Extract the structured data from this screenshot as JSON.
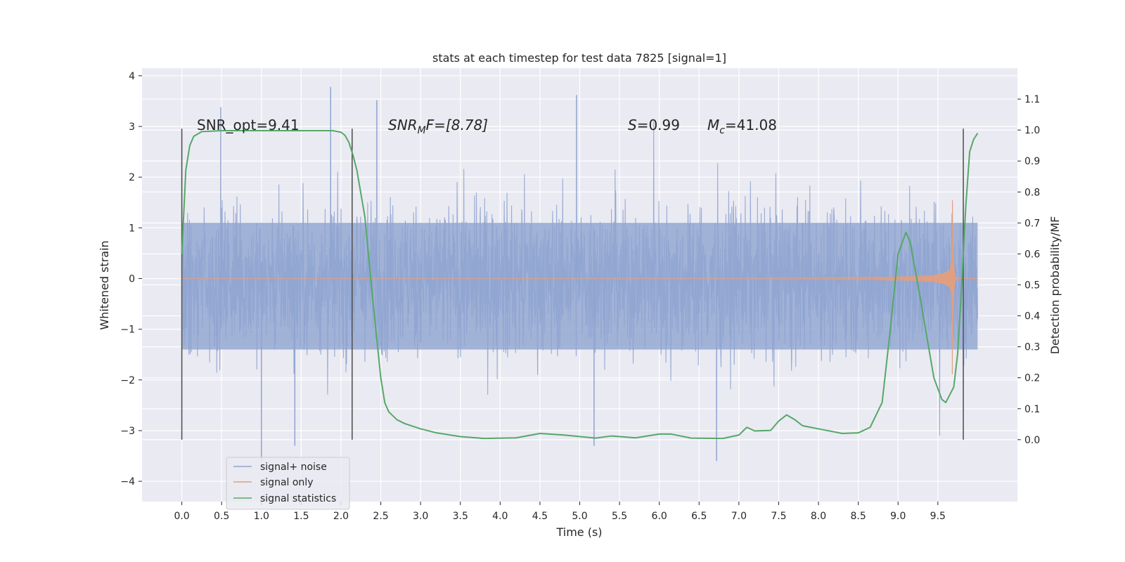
{
  "chart_data": {
    "type": "line",
    "title": "stats at each timestep for test data 7825 [signal=1]",
    "xlabel": "Time (s)",
    "ylabel": "Whitened strain",
    "ylabel_right": "Detection probability/MF",
    "xlim": [
      -0.5,
      10.5
    ],
    "ylim": [
      -4.4,
      4.15
    ],
    "ylim_right": [
      -0.2,
      1.2
    ],
    "x_ticks": [
      "0.0",
      "0.5",
      "1.0",
      "1.5",
      "2.0",
      "2.5",
      "3.0",
      "3.5",
      "4.0",
      "4.5",
      "5.0",
      "5.5",
      "6.0",
      "6.5",
      "7.0",
      "7.5",
      "8.0",
      "8.5",
      "9.0",
      "9.5"
    ],
    "y_ticks": [
      "4",
      "3",
      "2",
      "1",
      "0",
      "−1",
      "−2",
      "−3",
      "−4"
    ],
    "y_ticks_right": [
      "1.1",
      "1.0",
      "0.9",
      "0.8",
      "0.7",
      "0.6",
      "0.5",
      "0.4",
      "0.3",
      "0.2",
      "0.1",
      "0.0"
    ],
    "grid": true,
    "legend_position": "bottom-left",
    "annotations": {
      "snr_opt": "SNR_opt=9.41",
      "snr_mf_italic": "SNR",
      "snr_mf_sub": "M",
      "snr_mf_tail": "F=[8.78]",
      "s_label": "S",
      "s_value": "=0.99",
      "mc_label": "M",
      "mc_sub": "c",
      "mc_value": "=41.08"
    },
    "vertical_markers_x": [
      0.0,
      2.14,
      9.82
    ],
    "series": [
      {
        "name": "signal+ noise",
        "axis": "left",
        "color": "#8fa4d0",
        "x_range": [
          0.0,
          10.0
        ],
        "envelope_upper": 1.1,
        "envelope_lower": -1.4,
        "peaks": [
          [
            1.87,
            3.78
          ],
          [
            4.96,
            3.62
          ],
          [
            2.45,
            3.52
          ],
          [
            0.49,
            3.38
          ],
          [
            1.0,
            -3.6
          ],
          [
            6.72,
            -3.6
          ],
          [
            1.42,
            -3.3
          ],
          [
            5.18,
            -3.3
          ]
        ]
      },
      {
        "name": "signal only",
        "axis": "left",
        "color": "#e29f7f",
        "x_range": [
          0.0,
          10.0
        ],
        "merger_time": 9.68,
        "peak_amplitude": 2.3
      },
      {
        "name": "signal statistics",
        "axis": "right",
        "color": "#55a868",
        "points": [
          [
            0.0,
            0.6
          ],
          [
            0.05,
            0.87
          ],
          [
            0.1,
            0.95
          ],
          [
            0.15,
            0.98
          ],
          [
            0.25,
            0.995
          ],
          [
            0.5,
            0.998
          ],
          [
            1.0,
            0.998
          ],
          [
            1.5,
            0.998
          ],
          [
            1.9,
            0.998
          ],
          [
            2.0,
            0.993
          ],
          [
            2.05,
            0.983
          ],
          [
            2.1,
            0.96
          ],
          [
            2.15,
            0.92
          ],
          [
            2.2,
            0.87
          ],
          [
            2.3,
            0.72
          ],
          [
            2.4,
            0.45
          ],
          [
            2.5,
            0.2
          ],
          [
            2.55,
            0.12
          ],
          [
            2.6,
            0.09
          ],
          [
            2.7,
            0.065
          ],
          [
            2.8,
            0.052
          ],
          [
            3.0,
            0.035
          ],
          [
            3.2,
            0.022
          ],
          [
            3.5,
            0.01
          ],
          [
            3.8,
            0.004
          ],
          [
            4.2,
            0.006
          ],
          [
            4.5,
            0.02
          ],
          [
            4.8,
            0.015
          ],
          [
            5.2,
            0.005
          ],
          [
            5.4,
            0.012
          ],
          [
            5.7,
            0.006
          ],
          [
            6.0,
            0.018
          ],
          [
            6.15,
            0.018
          ],
          [
            6.4,
            0.005
          ],
          [
            6.8,
            0.004
          ],
          [
            7.0,
            0.015
          ],
          [
            7.1,
            0.04
          ],
          [
            7.2,
            0.028
          ],
          [
            7.4,
            0.03
          ],
          [
            7.5,
            0.06
          ],
          [
            7.6,
            0.08
          ],
          [
            7.7,
            0.065
          ],
          [
            7.8,
            0.045
          ],
          [
            8.0,
            0.035
          ],
          [
            8.3,
            0.02
          ],
          [
            8.5,
            0.022
          ],
          [
            8.65,
            0.04
          ],
          [
            8.8,
            0.12
          ],
          [
            8.9,
            0.35
          ],
          [
            9.0,
            0.6
          ],
          [
            9.1,
            0.67
          ],
          [
            9.15,
            0.64
          ],
          [
            9.25,
            0.5
          ],
          [
            9.35,
            0.35
          ],
          [
            9.45,
            0.2
          ],
          [
            9.55,
            0.13
          ],
          [
            9.6,
            0.12
          ],
          [
            9.7,
            0.17
          ],
          [
            9.75,
            0.28
          ],
          [
            9.8,
            0.5
          ],
          [
            9.85,
            0.75
          ],
          [
            9.9,
            0.93
          ],
          [
            9.95,
            0.97
          ],
          [
            10.0,
            0.99
          ]
        ]
      }
    ]
  }
}
